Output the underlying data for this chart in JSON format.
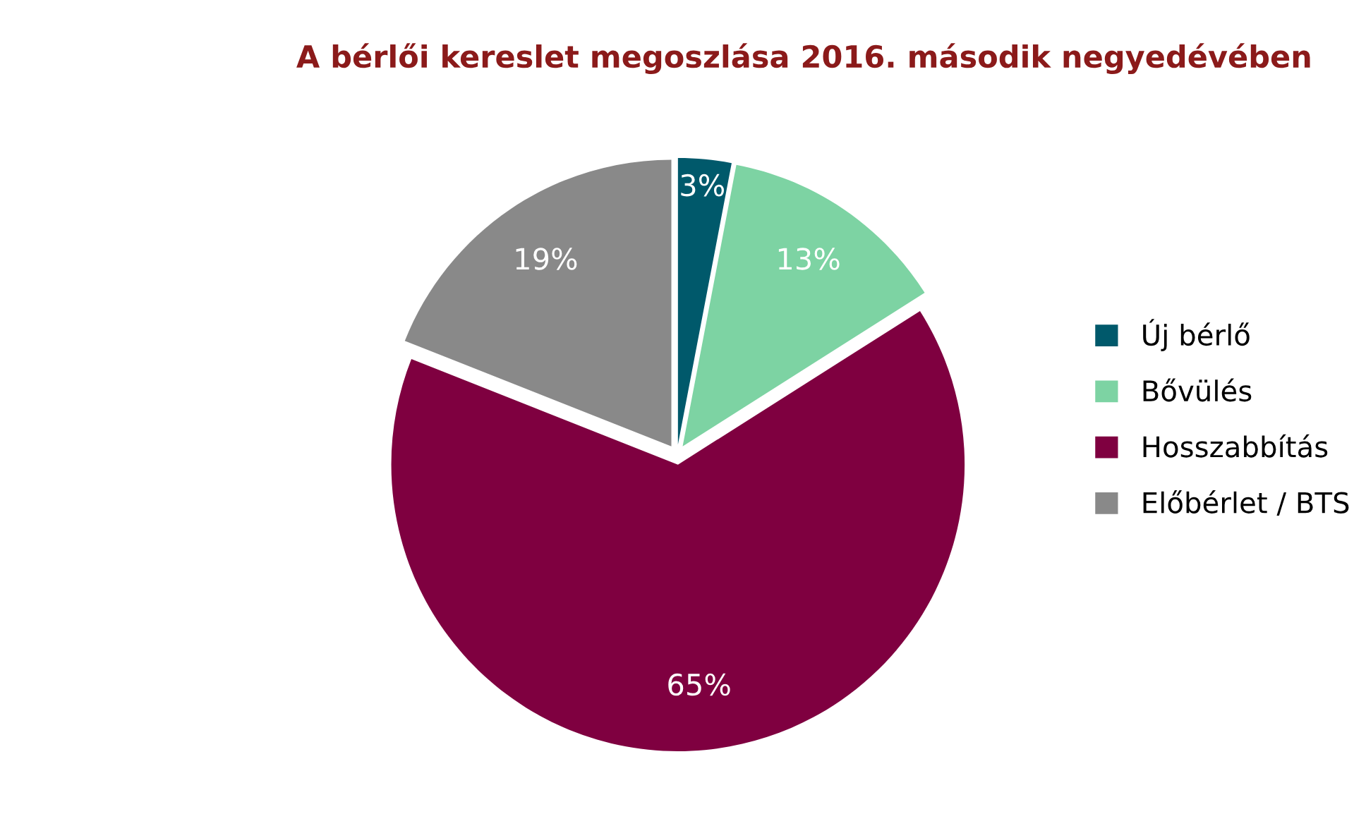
{
  "chart_data": {
    "type": "pie",
    "title": "A bérlői kereslet megoszlása 2016. második negyedévében",
    "categories": [
      "Új bérlő",
      "Bővülés",
      "Hosszabbítás",
      "Előbérlet / BTS"
    ],
    "values": [
      3,
      13,
      65,
      19
    ],
    "colors": [
      "#00596b",
      "#7dd3a3",
      "#7f0040",
      "#898989"
    ],
    "value_labels": [
      "3%",
      "13%",
      "65%",
      "19%"
    ],
    "legend": "right"
  }
}
